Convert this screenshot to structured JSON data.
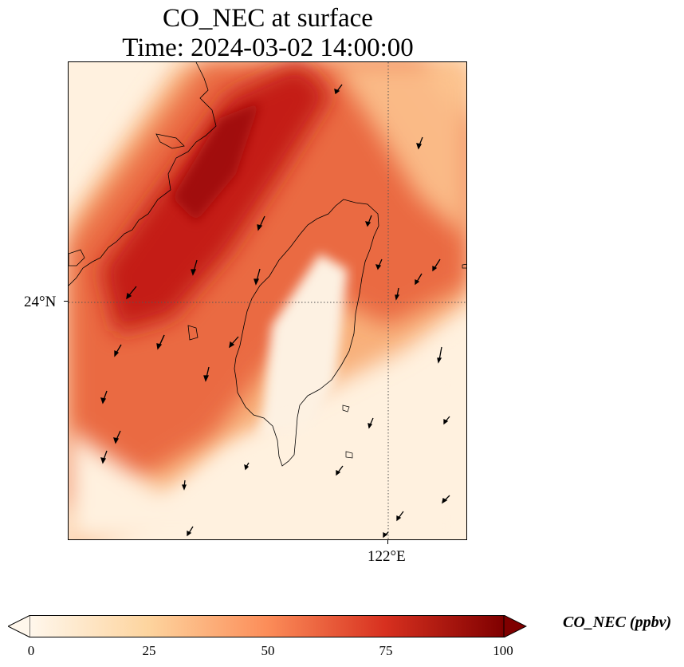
{
  "title": {
    "line1": "CO_NEC at surface",
    "line2": "Time: 2024-03-02 14:00:00"
  },
  "map": {
    "region": "Taiwan Strait / Taiwan",
    "lat_label": "24°N",
    "lon_label": "122°E",
    "gridlines": "dotted",
    "wind_vectors": "shown"
  },
  "colorbar": {
    "title": "CO_NEC (ppbv)",
    "ticks": [
      "0",
      "25",
      "50",
      "75",
      "100"
    ],
    "range": [
      0,
      100
    ],
    "colormap": "OrRd",
    "extend": "both",
    "colors": [
      "#fff7ec",
      "#fdd49e",
      "#fc8d59",
      "#d7301f",
      "#7f0000"
    ]
  }
}
